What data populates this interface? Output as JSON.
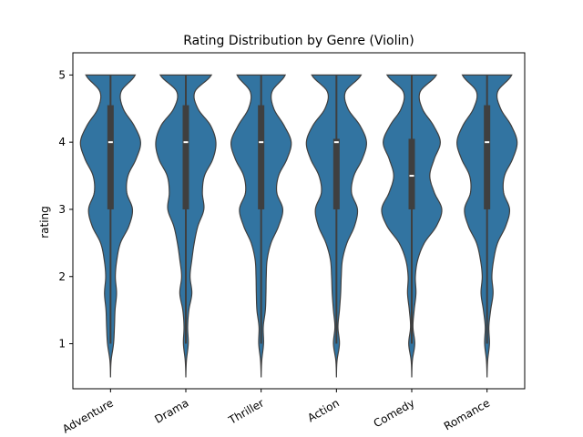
{
  "chart_data": {
    "type": "violin",
    "title": "Rating Distribution by Genre (Violin)",
    "xlabel": "",
    "ylabel": "rating",
    "ylim": [
      0.33,
      5.33
    ],
    "yticks": [
      1,
      2,
      3,
      4,
      5
    ],
    "categories": [
      "Adventure",
      "Drama",
      "Thriller",
      "Action",
      "Comedy",
      "Romance"
    ],
    "grid": false,
    "colors": {
      "violin_fill": "#3274a1",
      "violin_edge": "#3f3f3f",
      "box": "#3f3f3f",
      "median": "#ffffff"
    },
    "violins": [
      {
        "category": "Adventure",
        "box": {
          "q1": 3.0,
          "median": 4.0,
          "q3": 4.55,
          "whisker_low": 1.0,
          "whisker_high": 5.0
        },
        "density": [
          [
            0.5,
            0.0
          ],
          [
            0.75,
            0.02
          ],
          [
            1.0,
            0.1
          ],
          [
            1.25,
            0.13
          ],
          [
            1.5,
            0.15
          ],
          [
            1.75,
            0.2
          ],
          [
            2.0,
            0.16
          ],
          [
            2.25,
            0.21
          ],
          [
            2.5,
            0.33
          ],
          [
            2.75,
            0.61
          ],
          [
            3.0,
            0.73
          ],
          [
            3.25,
            0.54
          ],
          [
            3.5,
            0.58
          ],
          [
            3.75,
            0.85
          ],
          [
            4.0,
            1.0
          ],
          [
            4.25,
            0.78
          ],
          [
            4.5,
            0.42
          ],
          [
            4.75,
            0.35
          ],
          [
            5.0,
            0.82
          ]
        ]
      },
      {
        "category": "Drama",
        "box": {
          "q1": 3.0,
          "median": 4.0,
          "q3": 4.55,
          "whisker_low": 1.0,
          "whisker_high": 5.0
        },
        "density": [
          [
            0.5,
            0.0
          ],
          [
            0.75,
            0.02
          ],
          [
            1.0,
            0.08
          ],
          [
            1.25,
            0.06
          ],
          [
            1.5,
            0.1
          ],
          [
            1.75,
            0.2
          ],
          [
            2.0,
            0.14
          ],
          [
            2.25,
            0.2
          ],
          [
            2.5,
            0.28
          ],
          [
            2.75,
            0.4
          ],
          [
            3.0,
            0.6
          ],
          [
            3.25,
            0.55
          ],
          [
            3.5,
            0.62
          ],
          [
            3.75,
            0.9
          ],
          [
            4.0,
            1.0
          ],
          [
            4.25,
            0.82
          ],
          [
            4.5,
            0.4
          ],
          [
            4.75,
            0.3
          ],
          [
            5.0,
            0.85
          ]
        ]
      },
      {
        "category": "Thriller",
        "box": {
          "q1": 3.0,
          "median": 4.0,
          "q3": 4.55,
          "whisker_low": 1.0,
          "whisker_high": 5.0
        },
        "density": [
          [
            0.5,
            0.0
          ],
          [
            0.75,
            0.02
          ],
          [
            1.0,
            0.08
          ],
          [
            1.25,
            0.07
          ],
          [
            1.5,
            0.14
          ],
          [
            1.75,
            0.16
          ],
          [
            2.0,
            0.17
          ],
          [
            2.25,
            0.2
          ],
          [
            2.5,
            0.33
          ],
          [
            2.75,
            0.58
          ],
          [
            3.0,
            0.72
          ],
          [
            3.25,
            0.52
          ],
          [
            3.5,
            0.58
          ],
          [
            3.75,
            0.86
          ],
          [
            4.0,
            1.0
          ],
          [
            4.25,
            0.76
          ],
          [
            4.5,
            0.42
          ],
          [
            4.75,
            0.36
          ],
          [
            5.0,
            0.8
          ]
        ]
      },
      {
        "category": "Action",
        "box": {
          "q1": 3.0,
          "median": 4.0,
          "q3": 4.05,
          "whisker_low": 1.0,
          "whisker_high": 5.0
        },
        "density": [
          [
            0.5,
            0.0
          ],
          [
            0.75,
            0.02
          ],
          [
            1.0,
            0.1
          ],
          [
            1.25,
            0.05
          ],
          [
            1.5,
            0.1
          ],
          [
            1.75,
            0.14
          ],
          [
            2.0,
            0.16
          ],
          [
            2.25,
            0.2
          ],
          [
            2.5,
            0.35
          ],
          [
            2.75,
            0.6
          ],
          [
            3.0,
            0.7
          ],
          [
            3.25,
            0.5
          ],
          [
            3.5,
            0.58
          ],
          [
            3.75,
            0.86
          ],
          [
            4.0,
            1.0
          ],
          [
            4.25,
            0.78
          ],
          [
            4.5,
            0.38
          ],
          [
            4.75,
            0.3
          ],
          [
            5.0,
            0.82
          ]
        ]
      },
      {
        "category": "Comedy",
        "box": {
          "q1": 3.0,
          "median": 3.5,
          "q3": 4.05,
          "whisker_low": 1.0,
          "whisker_high": 5.0
        },
        "density": [
          [
            0.5,
            0.0
          ],
          [
            0.75,
            0.02
          ],
          [
            1.0,
            0.1
          ],
          [
            1.25,
            0.04
          ],
          [
            1.5,
            0.08
          ],
          [
            1.75,
            0.14
          ],
          [
            2.0,
            0.12
          ],
          [
            2.25,
            0.2
          ],
          [
            2.5,
            0.42
          ],
          [
            2.75,
            0.82
          ],
          [
            3.0,
            1.0
          ],
          [
            3.25,
            0.75
          ],
          [
            3.5,
            0.6
          ],
          [
            3.75,
            0.75
          ],
          [
            4.0,
            0.95
          ],
          [
            4.25,
            0.72
          ],
          [
            4.5,
            0.35
          ],
          [
            4.75,
            0.28
          ],
          [
            5.0,
            0.82
          ]
        ]
      },
      {
        "category": "Romance",
        "box": {
          "q1": 3.0,
          "median": 4.0,
          "q3": 4.55,
          "whisker_low": 1.0,
          "whisker_high": 5.0
        },
        "density": [
          [
            0.5,
            0.0
          ],
          [
            0.75,
            0.02
          ],
          [
            1.0,
            0.08
          ],
          [
            1.25,
            0.06
          ],
          [
            1.5,
            0.12
          ],
          [
            1.75,
            0.2
          ],
          [
            2.0,
            0.16
          ],
          [
            2.25,
            0.22
          ],
          [
            2.5,
            0.35
          ],
          [
            2.75,
            0.62
          ],
          [
            3.0,
            0.75
          ],
          [
            3.25,
            0.55
          ],
          [
            3.5,
            0.58
          ],
          [
            3.75,
            0.85
          ],
          [
            4.0,
            1.0
          ],
          [
            4.25,
            0.8
          ],
          [
            4.5,
            0.45
          ],
          [
            4.75,
            0.35
          ],
          [
            5.0,
            0.82
          ]
        ]
      }
    ]
  }
}
